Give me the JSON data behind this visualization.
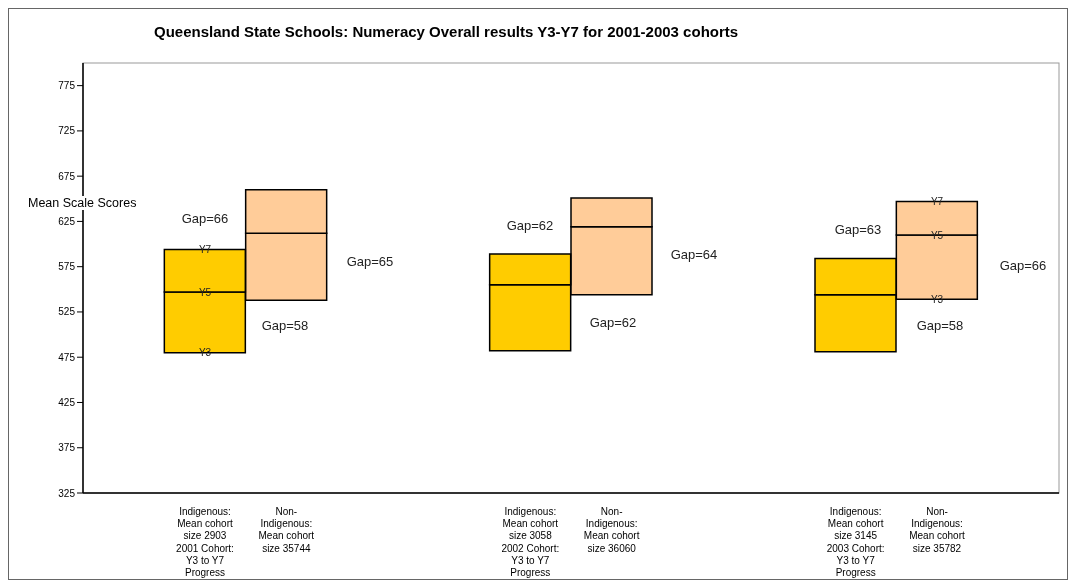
{
  "chart_data": {
    "type": "bar",
    "title": "Queensland State Schools: Numeracy Overall results Y3-Y7 for 2001-2003 cohorts",
    "ylabel": "Mean Scale Scores",
    "categories": [
      null,
      "Indigenous: Mean cohort size 2903 2001 Cohort: Y3 to Y7 Progress",
      "Non-Indigenous: Mean cohort size 35744",
      null,
      null,
      "Indigenous: Mean cohort size 3058 2002 Cohort: Y3 to Y7 Progress",
      "Non-Indigenous: Mean cohort size 36060",
      null,
      null,
      "Indigenous: Mean cohort size 3145 2003 Cohort: Y3 to Y7 Progress",
      "Non-Indigenous: Mean cohort size 35782",
      null
    ],
    "series": [
      {
        "colors": [
          null,
          "#ffcc00",
          "#ffcc99",
          null,
          null,
          "#ffcc00",
          "#ffcc99",
          null,
          null,
          "#ffcc00",
          "#ffcc99",
          null
        ],
        "base": [
          null,
          480,
          538,
          null,
          null,
          482,
          544,
          null,
          null,
          481,
          539,
          null
        ],
        "values": [
          null,
          67,
          74,
          null,
          null,
          73,
          75,
          null,
          null,
          63,
          71,
          null
        ]
      },
      {
        "colors": [
          null,
          "#ffcc00",
          "#ffcc99",
          null,
          null,
          "#ffcc00",
          "#ffcc99",
          null,
          null,
          "#ffcc00",
          "#ffcc99",
          null
        ],
        "base": [
          null,
          547,
          612,
          null,
          null,
          555,
          619,
          null,
          null,
          544,
          610,
          null
        ],
        "values": [
          null,
          47,
          48,
          null,
          null,
          34,
          32,
          null,
          null,
          40,
          37,
          null
        ]
      }
    ],
    "ylim": [
      325,
      800
    ],
    "yticks": [
      325,
      375,
      425,
      475,
      525,
      575,
      625,
      675,
      725,
      775
    ],
    "grid": false,
    "legend": false,
    "annotations": [
      "Gap=66",
      "Gap=65",
      "Gap=58",
      {
        "text": "Y7",
        "x": "Indigenous: Mean cohort size 2903 2001 Cohort: Y3 to Y7 Progress",
        "y": 594
      },
      {
        "text": "Y5",
        "x": "Indigenous: Mean cohort size 2903 2001 Cohort: Y3 to Y7 Progress",
        "y": 547
      },
      {
        "text": "Y3",
        "x": "Indigenous: Mean cohort size 2903 2001 Cohort: Y3 to Y7 Progress",
        "y": 480
      },
      "Gap=62",
      "Gap=64",
      "Gap=62",
      "Gap=63",
      "Gap=66",
      "Gap=58",
      {
        "text": "Y7",
        "x": "Non-Indigenous: Mean cohort size 35782",
        "y": 647
      },
      {
        "text": "Y5",
        "x": "Non-Indigenous: Mean cohort size 35782",
        "y": 610
      },
      {
        "text": "Y3",
        "x": "Non-Indigenous: Mean cohort size 35782",
        "y": 539
      }
    ]
  }
}
